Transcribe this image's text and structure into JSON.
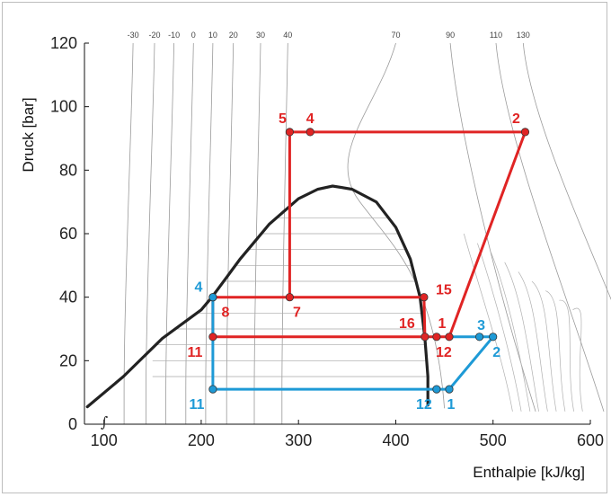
{
  "chart_data": {
    "type": "line",
    "title": "",
    "xlabel": "Enthalpie [kJ/kg]",
    "ylabel": "Druck [bar]",
    "xlim": [
      80,
      600
    ],
    "ylim": [
      0,
      120
    ],
    "x_ticks": [
      "100",
      "200",
      "300",
      "400",
      "500",
      "600"
    ],
    "y_ticks": [
      "0",
      "20",
      "40",
      "60",
      "80",
      "100",
      "120"
    ],
    "grid": false,
    "axis_break_symbol": "∫",
    "isotherm_labels": [
      {
        "label": "-30",
        "h": 130
      },
      {
        "label": "-20",
        "h": 152
      },
      {
        "label": "-10",
        "h": 172
      },
      {
        "label": "0",
        "h": 192
      },
      {
        "label": "10",
        "h": 212
      },
      {
        "label": "20",
        "h": 233
      },
      {
        "label": "30",
        "h": 261
      },
      {
        "label": "40",
        "h": 289
      },
      {
        "label": "70",
        "h": 400
      },
      {
        "label": "90",
        "h": 456
      },
      {
        "label": "110",
        "h": 503
      },
      {
        "label": "130",
        "h": 531
      }
    ],
    "saturation_dome": {
      "color": "#222222",
      "points": [
        [
          83,
          5.5
        ],
        [
          120,
          15
        ],
        [
          160,
          27
        ],
        [
          200,
          36
        ],
        [
          211,
          40
        ],
        [
          240,
          52
        ],
        [
          270,
          63
        ],
        [
          300,
          71
        ],
        [
          320,
          74
        ],
        [
          335,
          75
        ],
        [
          355,
          74
        ],
        [
          380,
          70
        ],
        [
          400,
          62
        ],
        [
          415,
          52
        ],
        [
          425,
          40
        ],
        [
          430,
          27
        ],
        [
          433,
          15
        ],
        [
          433,
          6
        ]
      ]
    },
    "series": [
      {
        "color": "#e02424",
        "segments": [
          [
            [
              291,
              92
            ],
            [
              533,
              92
            ],
            [
              455,
              27.5
            ],
            [
              212,
              27.5
            ],
            [
              212,
              40
            ],
            [
              291,
              40
            ],
            [
              291,
              92
            ]
          ],
          [
            [
              291,
              40
            ],
            [
              429,
              40
            ],
            [
              430,
              27.5
            ]
          ]
        ],
        "points": [
          {
            "label": "5",
            "h": 291,
            "p": 92
          },
          {
            "label": "4",
            "h": 312,
            "p": 92
          },
          {
            "label": "2",
            "h": 533,
            "p": 92
          },
          {
            "label": "7",
            "h": 291,
            "p": 40
          },
          {
            "label": "8",
            "h": 212,
            "p": 40
          },
          {
            "label": "15",
            "h": 429,
            "p": 40
          },
          {
            "label": "16",
            "h": 430,
            "p": 27.5
          },
          {
            "label": "11",
            "h": 212,
            "p": 27.5
          },
          {
            "label": "12",
            "h": 442,
            "p": 27.5
          },
          {
            "label": "1",
            "h": 455,
            "p": 27.5
          }
        ]
      },
      {
        "color": "#1e9ad6",
        "segments": [
          [
            [
              212,
              40
            ],
            [
              212,
              11
            ],
            [
              455,
              11
            ],
            [
              500,
              27.5
            ],
            [
              455,
              27.5
            ]
          ]
        ],
        "points": [
          {
            "label": "4",
            "h": 212,
            "p": 40
          },
          {
            "label": "11",
            "h": 212,
            "p": 11
          },
          {
            "label": "12",
            "h": 442,
            "p": 11
          },
          {
            "label": "1",
            "h": 455,
            "p": 11
          },
          {
            "label": "3",
            "h": 486,
            "p": 27.5
          },
          {
            "label": "2",
            "h": 500,
            "p": 27.5
          }
        ]
      }
    ]
  }
}
